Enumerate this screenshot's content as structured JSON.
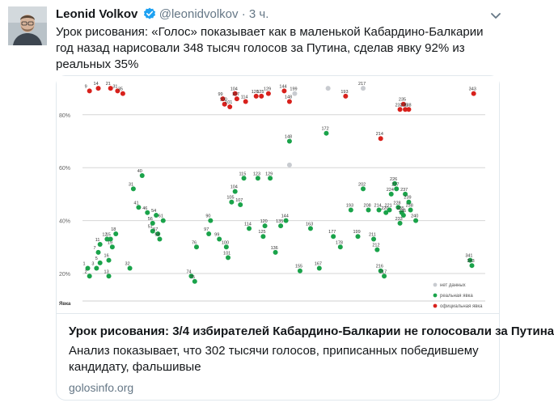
{
  "tweet": {
    "author_name": "Leonid Volkov",
    "handle": "@leonidvolkov",
    "separator": "·",
    "time": "3 ч.",
    "text": "Урок рисования: «Голос» показывает как в маленькой Кабардино-Балкарии год назад нарисовали 348 тысяч голосов за Путина, сделав явку 92% из реальных 35%"
  },
  "card": {
    "title": "Урок рисования: 3/4 избирателей Кабардино-Балкарии не голосовали за Путина",
    "description": "Анализ показывает, что 302 тысячи голосов, приписанных победившему кандидату, фальшивые",
    "domain": "golosinfo.org"
  },
  "colors": {
    "text": "#14171a",
    "muted": "#657786",
    "verified": "#1da1f2",
    "real": "#1aa34a",
    "official": "#d8211c",
    "nodata": "#c8cbd0"
  },
  "chart_data": {
    "type": "scatter",
    "y_ticks": [
      "20%",
      "40%",
      "60%",
      "80%"
    ],
    "ylim": [
      15,
      90
    ],
    "xlabel": "Явка",
    "legend_position": "bottom-right",
    "legend": [
      "нет данных",
      "реальная явка",
      "официальная явка"
    ],
    "series": [
      {
        "name": "реальная явка",
        "points": [
          {
            "x": 3,
            "y": 22,
            "label": "1"
          },
          {
            "x": 4,
            "y": 19,
            "label": "2"
          },
          {
            "x": 8,
            "y": 22,
            "label": "3"
          },
          {
            "x": 10,
            "y": 24,
            "label": "5"
          },
          {
            "x": 9,
            "y": 28,
            "label": "7"
          },
          {
            "x": 10,
            "y": 31,
            "label": "11"
          },
          {
            "x": 14,
            "y": 33,
            "label": "12"
          },
          {
            "x": 15,
            "y": 19,
            "label": "13"
          },
          {
            "x": 15,
            "y": 25,
            "label": "16"
          },
          {
            "x": 19,
            "y": 35,
            "label": "18"
          },
          {
            "x": 17,
            "y": 30,
            "label": "19"
          },
          {
            "x": 16,
            "y": 33,
            "label": "15"
          },
          {
            "x": 27,
            "y": 22,
            "label": "32"
          },
          {
            "x": 29,
            "y": 52,
            "label": "31"
          },
          {
            "x": 32,
            "y": 45,
            "label": "41"
          },
          {
            "x": 34,
            "y": 57,
            "label": "40"
          },
          {
            "x": 37,
            "y": 43,
            "label": "46"
          },
          {
            "x": 40,
            "y": 36,
            "label": "51"
          },
          {
            "x": 43,
            "y": 35,
            "label": "57"
          },
          {
            "x": 42,
            "y": 42,
            "label": "54"
          },
          {
            "x": 40,
            "y": 39,
            "label": "56"
          },
          {
            "x": 44,
            "y": 33,
            "label": "58"
          },
          {
            "x": 46,
            "y": 40,
            "label": "61"
          },
          {
            "x": 62,
            "y": 19,
            "label": "74"
          },
          {
            "x": 64,
            "y": 17,
            "label": "75"
          },
          {
            "x": 65,
            "y": 30,
            "label": "76"
          },
          {
            "x": 72,
            "y": 35,
            "label": "97"
          },
          {
            "x": 73,
            "y": 40,
            "label": "90"
          },
          {
            "x": 78,
            "y": 33,
            "label": "99"
          },
          {
            "x": 82,
            "y": 30,
            "label": "100"
          },
          {
            "x": 83,
            "y": 26,
            "label": "101"
          },
          {
            "x": 85,
            "y": 47,
            "label": "105"
          },
          {
            "x": 87,
            "y": 51,
            "label": "104"
          },
          {
            "x": 90,
            "y": 46,
            "label": "107"
          },
          {
            "x": 92,
            "y": 56,
            "label": "115"
          },
          {
            "x": 95,
            "y": 37,
            "label": "114"
          },
          {
            "x": 100,
            "y": 56,
            "label": "123"
          },
          {
            "x": 103,
            "y": 34,
            "label": "125"
          },
          {
            "x": 104,
            "y": 38,
            "label": "120"
          },
          {
            "x": 107,
            "y": 56,
            "label": "129"
          },
          {
            "x": 110,
            "y": 28,
            "label": "136"
          },
          {
            "x": 113,
            "y": 38,
            "label": "135"
          },
          {
            "x": 116,
            "y": 40,
            "label": "144"
          },
          {
            "x": 118,
            "y": 70,
            "label": "148"
          },
          {
            "x": 124,
            "y": 21,
            "label": "155"
          },
          {
            "x": 130,
            "y": 37,
            "label": "163"
          },
          {
            "x": 135,
            "y": 22,
            "label": "167"
          },
          {
            "x": 139,
            "y": 73,
            "label": "172"
          },
          {
            "x": 143,
            "y": 34,
            "label": "177"
          },
          {
            "x": 147,
            "y": 30,
            "label": "178"
          },
          {
            "x": 153,
            "y": 44,
            "label": "193"
          },
          {
            "x": 157,
            "y": 34,
            "label": "199"
          },
          {
            "x": 160,
            "y": 52,
            "label": "202"
          },
          {
            "x": 163,
            "y": 44,
            "label": "208"
          },
          {
            "x": 166,
            "y": 33,
            "label": "211"
          },
          {
            "x": 168,
            "y": 29,
            "label": "212"
          },
          {
            "x": 169,
            "y": 44,
            "label": "214"
          },
          {
            "x": 170,
            "y": 21,
            "label": "216"
          },
          {
            "x": 172,
            "y": 19,
            "label": "217"
          },
          {
            "x": 173,
            "y": 43,
            "label": "220"
          },
          {
            "x": 175,
            "y": 44,
            "label": "221"
          },
          {
            "x": 176,
            "y": 50,
            "label": "224"
          },
          {
            "x": 178,
            "y": 54,
            "label": "226"
          },
          {
            "x": 179,
            "y": 52,
            "label": "227"
          },
          {
            "x": 180,
            "y": 45,
            "label": "228"
          },
          {
            "x": 181,
            "y": 39,
            "label": "233"
          },
          {
            "x": 182,
            "y": 43,
            "label": "235"
          },
          {
            "x": 183,
            "y": 42,
            "label": "236"
          },
          {
            "x": 184,
            "y": 50,
            "label": "237"
          },
          {
            "x": 186,
            "y": 47,
            "label": "239"
          },
          {
            "x": 187,
            "y": 44,
            "label": "238"
          },
          {
            "x": 190,
            "y": 40,
            "label": "240"
          },
          {
            "x": 221,
            "y": 25,
            "label": "341"
          },
          {
            "x": 222,
            "y": 23,
            "label": "343"
          }
        ]
      },
      {
        "name": "официальная явка",
        "points": [
          {
            "x": 4,
            "y": 89,
            "label": "9"
          },
          {
            "x": 9,
            "y": 90,
            "label": "14"
          },
          {
            "x": 16,
            "y": 90,
            "label": "21"
          },
          {
            "x": 20,
            "y": 89,
            "label": "31"
          },
          {
            "x": 23,
            "y": 88,
            "label": "35"
          },
          {
            "x": 80,
            "y": 86,
            "label": "99"
          },
          {
            "x": 81,
            "y": 84,
            "label": "100"
          },
          {
            "x": 84,
            "y": 83,
            "label": "101"
          },
          {
            "x": 87,
            "y": 88,
            "label": "104"
          },
          {
            "x": 88,
            "y": 86,
            "label": "107"
          },
          {
            "x": 93,
            "y": 85,
            "label": "114"
          },
          {
            "x": 99,
            "y": 87,
            "label": "120"
          },
          {
            "x": 102,
            "y": 87,
            "label": "125"
          },
          {
            "x": 106,
            "y": 88,
            "label": "129"
          },
          {
            "x": 115,
            "y": 89,
            "label": "144"
          },
          {
            "x": 118,
            "y": 85,
            "label": "148"
          },
          {
            "x": 150,
            "y": 87,
            "label": "193"
          },
          {
            "x": 170,
            "y": 71,
            "label": "214"
          },
          {
            "x": 181,
            "y": 82,
            "label": "233"
          },
          {
            "x": 183,
            "y": 84,
            "label": "235"
          },
          {
            "x": 184,
            "y": 82,
            "label": "236"
          },
          {
            "x": 186,
            "y": 82,
            "label": "238"
          },
          {
            "x": 223,
            "y": 88,
            "label": "343"
          }
        ]
      },
      {
        "name": "нет данных",
        "points": [
          {
            "x": 118,
            "y": 61,
            "label": ""
          },
          {
            "x": 121,
            "y": 88,
            "label": "199"
          },
          {
            "x": 140,
            "y": 90,
            "label": ""
          },
          {
            "x": 160,
            "y": 90,
            "label": "217"
          }
        ]
      }
    ]
  }
}
